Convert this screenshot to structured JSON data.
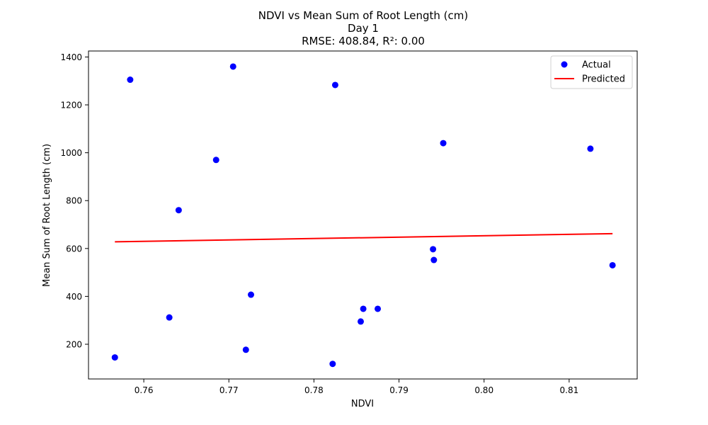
{
  "chart_data": {
    "type": "scatter",
    "title_lines": [
      "NDVI vs Mean Sum of Root Length (cm)",
      "Day 1",
      "RMSE: 408.84, R²: 0.00"
    ],
    "xlabel": "NDVI",
    "ylabel": "Mean Sum of Root Length (cm)",
    "xlim": [
      0.7535,
      0.818
    ],
    "ylim": [
      55,
      1425
    ],
    "x_ticks": [
      0.76,
      0.77,
      0.78,
      0.79,
      0.8,
      0.81
    ],
    "x_tick_labels": [
      "0.76",
      "0.77",
      "0.78",
      "0.79",
      "0.80",
      "0.81"
    ],
    "y_ticks": [
      200,
      400,
      600,
      800,
      1000,
      1200,
      1400
    ],
    "y_tick_labels": [
      "200",
      "400",
      "600",
      "800",
      "1000",
      "1200",
      "1400"
    ],
    "grid": false,
    "legend_position": "top-right",
    "series": [
      {
        "name": "Actual",
        "kind": "scatter",
        "color": "#0000ff",
        "points": [
          [
            0.7566,
            145
          ],
          [
            0.7584,
            1305
          ],
          [
            0.763,
            312
          ],
          [
            0.7641,
            760
          ],
          [
            0.7685,
            970
          ],
          [
            0.7705,
            1360
          ],
          [
            0.772,
            177
          ],
          [
            0.7726,
            407
          ],
          [
            0.7822,
            118
          ],
          [
            0.7825,
            1283
          ],
          [
            0.7855,
            295
          ],
          [
            0.7858,
            348
          ],
          [
            0.7875,
            348
          ],
          [
            0.794,
            597
          ],
          [
            0.7941,
            552
          ],
          [
            0.7952,
            1040
          ],
          [
            0.8125,
            1017
          ],
          [
            0.8151,
            530
          ]
        ]
      },
      {
        "name": "Predicted",
        "kind": "line",
        "color": "#ff0000",
        "points": [
          [
            0.7566,
            628
          ],
          [
            0.8151,
            662
          ]
        ]
      }
    ]
  }
}
